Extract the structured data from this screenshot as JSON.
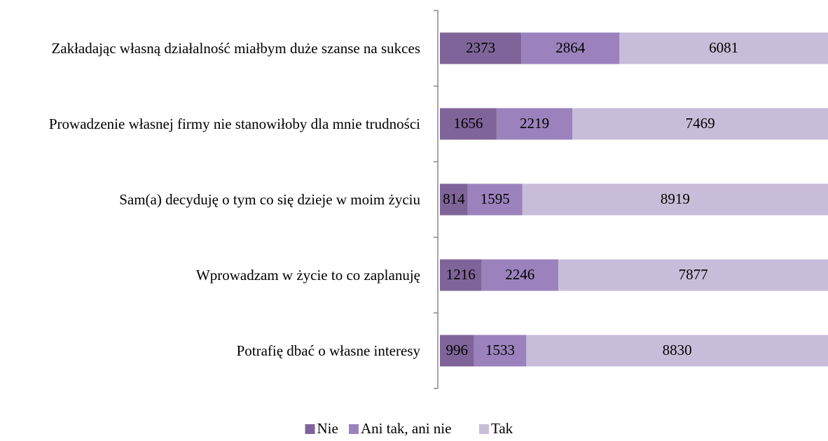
{
  "chart_data": {
    "type": "bar",
    "orientation": "horizontal",
    "stacking": "percent",
    "categories": [
      "Zakładając własną działalność miałbym duże szanse na sukces",
      "Prowadzenie własnej firmy nie stanowiłoby dla mnie trudności",
      "Sam(a) decyduję o tym co się dzieje w moim życiu",
      "Wprowadzam w życie to co zaplanuję",
      "Potrafię dbać o własne interesy"
    ],
    "series": [
      {
        "name": "Nie",
        "color": "#7f6499",
        "values": [
          2373,
          1656,
          814,
          1216,
          996
        ]
      },
      {
        "name": "Ani tak, ani nie",
        "color": "#9b82bd",
        "values": [
          2864,
          2219,
          1595,
          2246,
          1533
        ]
      },
      {
        "name": "Tak",
        "color": "#c8bdd9",
        "values": [
          6081,
          7469,
          8919,
          7877,
          8830
        ]
      }
    ],
    "legend": "bottom"
  }
}
